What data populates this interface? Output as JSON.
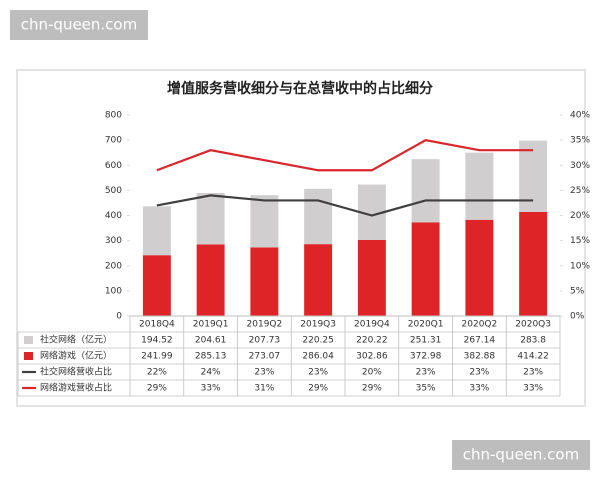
{
  "watermarks": [
    "chn-queen.com",
    "chn-queen.com"
  ],
  "chart_data": {
    "type": "bar",
    "title": "增值服务营收细分与在总营收中的占比细分",
    "categories": [
      "2018Q4",
      "2019Q1",
      "2019Q2",
      "2019Q3",
      "2019Q4",
      "2020Q1",
      "2020Q2",
      "2020Q3"
    ],
    "series": [
      {
        "name": "社交网络（亿元）",
        "type": "bar",
        "color": "#d0cece",
        "values": [
          194.52,
          204.61,
          207.73,
          220.25,
          220.22,
          251.31,
          267.14,
          283.8
        ]
      },
      {
        "name": "网络游戏（亿元）",
        "type": "bar",
        "color": "#df2428",
        "values": [
          241.99,
          285.13,
          273.07,
          286.04,
          302.86,
          372.98,
          382.88,
          414.22
        ]
      },
      {
        "name": "社交网络营收占比",
        "type": "line",
        "axis": "y2",
        "color": "#3f3f3f",
        "values": [
          22,
          24,
          23,
          23,
          20,
          23,
          23,
          23
        ],
        "value_labels": [
          "22%",
          "24%",
          "23%",
          "23%",
          "20%",
          "23%",
          "23%",
          "23%"
        ]
      },
      {
        "name": "网络游戏营收占比",
        "type": "line",
        "axis": "y2",
        "color": "#d9262b",
        "values": [
          29,
          33,
          31,
          29,
          29,
          35,
          33,
          33
        ],
        "value_labels": [
          "29%",
          "33%",
          "31%",
          "29%",
          "29%",
          "35%",
          "33%",
          "33%"
        ]
      }
    ],
    "ylim": [
      0,
      800
    ],
    "yticks": [
      0,
      100,
      200,
      300,
      400,
      500,
      600,
      700,
      800
    ],
    "y2lim": [
      0,
      40
    ],
    "y2ticks": [
      {
        "value": 0,
        "label": "0%"
      },
      {
        "value": 5,
        "label": "5%"
      },
      {
        "value": 10,
        "label": "10%"
      },
      {
        "value": 15,
        "label": "15%"
      },
      {
        "value": 20,
        "label": "20%"
      },
      {
        "value": 25,
        "label": "25%"
      },
      {
        "value": 30,
        "label": "30%"
      },
      {
        "value": 35,
        "label": "35%"
      },
      {
        "value": 40,
        "label": "40%"
      }
    ],
    "grid": false
  }
}
